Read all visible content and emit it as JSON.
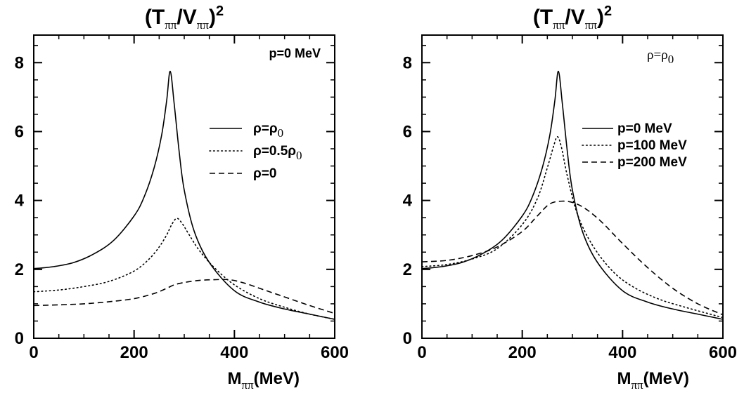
{
  "chart_data": [
    {
      "type": "line",
      "title_base": "(T",
      "title_sub1": "ππ",
      "title_mid": "/V",
      "title_sub2": "ππ",
      "title_end": ")",
      "title_sup": "2",
      "xlabel_base": "M",
      "xlabel_sub": "ππ",
      "xlabel_end": "(MeV)",
      "xlim": [
        0,
        600
      ],
      "ylim": [
        0,
        8.8
      ],
      "xticks": [
        0,
        200,
        400,
        600
      ],
      "yticks": [
        0,
        2,
        4,
        6,
        8
      ],
      "annotation": "p=0 MeV",
      "series": [
        {
          "label_base": "ρ=ρ",
          "label_sub": "0",
          "style": "solid",
          "x": [
            0,
            40,
            80,
            120,
            160,
            200,
            220,
            240,
            255,
            265,
            272,
            280,
            290,
            300,
            320,
            350,
            400,
            450,
            500,
            550,
            600
          ],
          "y": [
            2.02,
            2.08,
            2.2,
            2.45,
            2.85,
            3.55,
            4.1,
            4.95,
            5.9,
            6.9,
            7.75,
            6.8,
            5.4,
            4.3,
            3.1,
            2.2,
            1.38,
            1.05,
            0.85,
            0.7,
            0.55
          ]
        },
        {
          "label_base": "ρ=0.5ρ",
          "label_sub": "0",
          "style": "dotted",
          "x": [
            0,
            50,
            100,
            150,
            200,
            230,
            250,
            265,
            275,
            285,
            295,
            310,
            330,
            360,
            400,
            450,
            500,
            550,
            600
          ],
          "y": [
            1.35,
            1.4,
            1.5,
            1.65,
            1.95,
            2.3,
            2.65,
            3.0,
            3.3,
            3.48,
            3.35,
            3.0,
            2.55,
            2.05,
            1.55,
            1.15,
            0.9,
            0.7,
            0.55
          ]
        },
        {
          "label_base": "ρ=0",
          "label_sub": "",
          "style": "dashed",
          "x": [
            0,
            50,
            100,
            150,
            200,
            240,
            265,
            280,
            300,
            330,
            360,
            390,
            420,
            460,
            500,
            550,
            600
          ],
          "y": [
            0.95,
            0.97,
            1.0,
            1.06,
            1.15,
            1.3,
            1.45,
            1.55,
            1.62,
            1.68,
            1.7,
            1.7,
            1.6,
            1.4,
            1.2,
            0.95,
            0.72
          ]
        }
      ]
    },
    {
      "type": "line",
      "title_base": "(T",
      "title_sub1": "ππ",
      "title_mid": "/V",
      "title_sub2": "ππ",
      "title_end": ")",
      "title_sup": "2",
      "xlabel_base": "M",
      "xlabel_sub": "ππ",
      "xlabel_end": "(MeV)",
      "xlim": [
        0,
        600
      ],
      "ylim": [
        0,
        8.8
      ],
      "xticks": [
        0,
        200,
        400,
        600
      ],
      "yticks": [
        0,
        2,
        4,
        6,
        8
      ],
      "annotation_base": "ρ=ρ",
      "annotation_sub": "0",
      "series": [
        {
          "label": "p=0 MeV",
          "style": "solid",
          "x": [
            0,
            40,
            80,
            120,
            160,
            200,
            220,
            240,
            255,
            265,
            272,
            280,
            290,
            300,
            320,
            350,
            400,
            450,
            500,
            550,
            600
          ],
          "y": [
            2.02,
            2.08,
            2.2,
            2.45,
            2.85,
            3.55,
            4.1,
            4.95,
            5.9,
            6.9,
            7.75,
            6.8,
            5.4,
            4.3,
            3.1,
            2.2,
            1.38,
            1.05,
            0.85,
            0.7,
            0.55
          ]
        },
        {
          "label": "p=100 MeV",
          "style": "dotted",
          "x": [
            0,
            50,
            100,
            150,
            200,
            230,
            250,
            262,
            270,
            278,
            290,
            310,
            340,
            380,
            420,
            470,
            520,
            600
          ],
          "y": [
            2.08,
            2.14,
            2.3,
            2.6,
            3.3,
            4.05,
            4.95,
            5.55,
            5.85,
            5.55,
            4.7,
            3.6,
            2.7,
            1.95,
            1.5,
            1.15,
            0.92,
            0.6
          ]
        },
        {
          "label": "p=200 MeV",
          "style": "dashed",
          "x": [
            0,
            50,
            100,
            150,
            200,
            230,
            255,
            280,
            305,
            330,
            360,
            400,
            450,
            500,
            550,
            600
          ],
          "y": [
            2.22,
            2.26,
            2.4,
            2.65,
            3.1,
            3.55,
            3.9,
            3.98,
            3.92,
            3.72,
            3.35,
            2.75,
            2.05,
            1.45,
            1.0,
            0.68
          ]
        }
      ]
    }
  ]
}
